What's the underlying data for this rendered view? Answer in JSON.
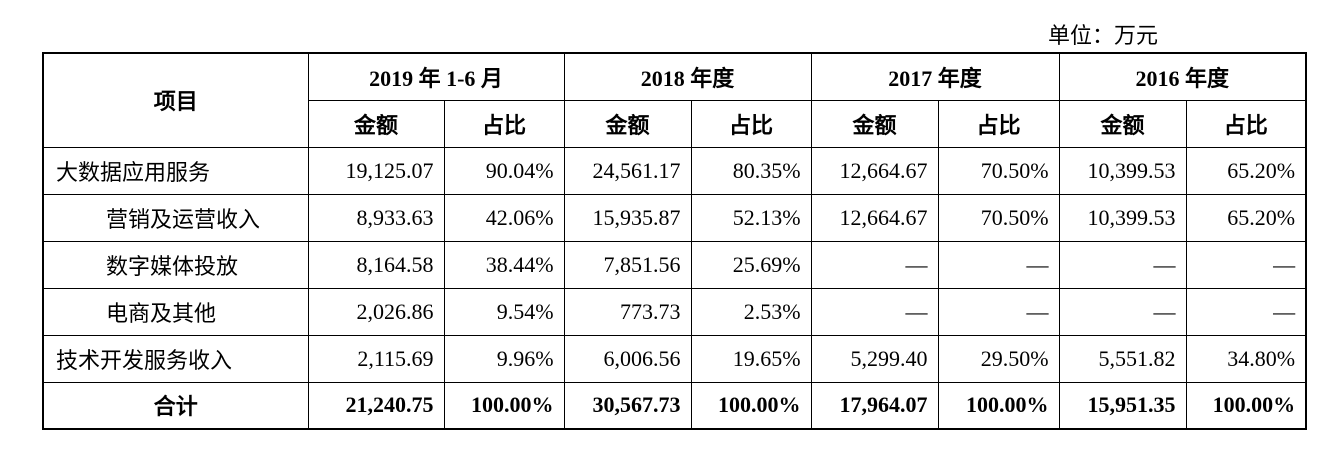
{
  "unit": "单位：万元",
  "table": {
    "header": {
      "item": "项目",
      "periods": [
        "2019 年 1-6 月",
        "2018 年度",
        "2017 年度",
        "2016 年度"
      ],
      "subheaders": [
        "金额",
        "占比",
        "金额",
        "占比",
        "金额",
        "占比",
        "金额",
        "占比"
      ]
    },
    "rows": [
      {
        "label": "大数据应用服务",
        "cells": [
          "19,125.07",
          "90.04%",
          "24,561.17",
          "80.35%",
          "12,664.67",
          "70.50%",
          "10,399.53",
          "65.20%"
        ]
      },
      {
        "label": "营销及运营收入",
        "cells": [
          "8,933.63",
          "42.06%",
          "15,935.87",
          "52.13%",
          "12,664.67",
          "70.50%",
          "10,399.53",
          "65.20%"
        ]
      },
      {
        "label": "数字媒体投放",
        "cells": [
          "8,164.58",
          "38.44%",
          "7,851.56",
          "25.69%",
          "—",
          "—",
          "—",
          "—"
        ]
      },
      {
        "label": "电商及其他",
        "cells": [
          "2,026.86",
          "9.54%",
          "773.73",
          "2.53%",
          "—",
          "—",
          "—",
          "—"
        ]
      },
      {
        "label": "技术开发服务收入",
        "cells": [
          "2,115.69",
          "9.96%",
          "6,006.56",
          "19.65%",
          "5,299.40",
          "29.50%",
          "5,551.82",
          "34.80%"
        ]
      }
    ],
    "total": {
      "label": "合计",
      "cells": [
        "21,240.75",
        "100.00%",
        "30,567.73",
        "100.00%",
        "17,964.07",
        "100.00%",
        "15,951.35",
        "100.00%"
      ]
    }
  }
}
